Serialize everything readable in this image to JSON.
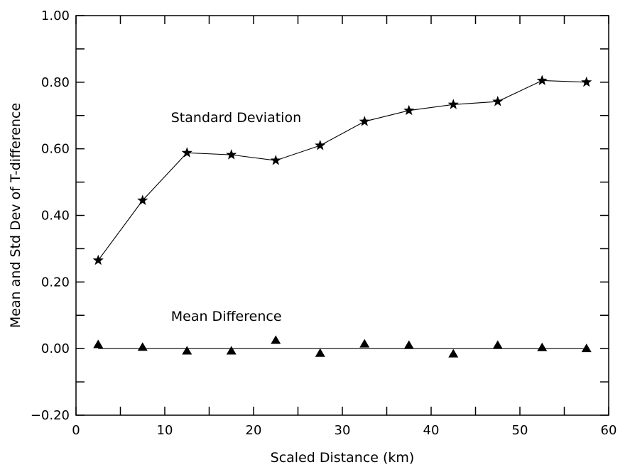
{
  "chart_data": {
    "type": "scatter",
    "xlabel": "Scaled Distance (km)",
    "ylabel": "Mean and Std Dev of T-difference",
    "xlim": [
      0,
      60
    ],
    "ylim": [
      -0.2,
      1.0
    ],
    "x_ticks": [
      "0",
      "10",
      "20",
      "30",
      "40",
      "50",
      "60"
    ],
    "y_ticks": [
      "−0.20",
      "0.00",
      "0.20",
      "0.40",
      "0.60",
      "0.80",
      "1.00"
    ],
    "grid": false,
    "series": [
      {
        "name": "Standard Deviation",
        "marker": "star",
        "line": true,
        "x": [
          2.5,
          7.5,
          12.5,
          17.5,
          22.5,
          27.5,
          32.5,
          37.5,
          42.5,
          47.5,
          52.5,
          57.5
        ],
        "values": [
          0.265,
          0.445,
          0.588,
          0.582,
          0.565,
          0.61,
          0.682,
          0.715,
          0.733,
          0.742,
          0.805,
          0.8
        ]
      },
      {
        "name": "Mean Difference",
        "marker": "triangle",
        "line": false,
        "x": [
          2.5,
          7.5,
          12.5,
          17.5,
          22.5,
          27.5,
          32.5,
          37.5,
          42.5,
          47.5,
          52.5,
          57.5
        ],
        "values": [
          0.012,
          0.004,
          -0.007,
          -0.007,
          0.025,
          -0.014,
          0.014,
          0.01,
          -0.016,
          0.01,
          0.003,
          0.0
        ]
      }
    ],
    "reference_line": {
      "y": 0.0,
      "x_range": [
        2.5,
        57.5
      ]
    }
  }
}
